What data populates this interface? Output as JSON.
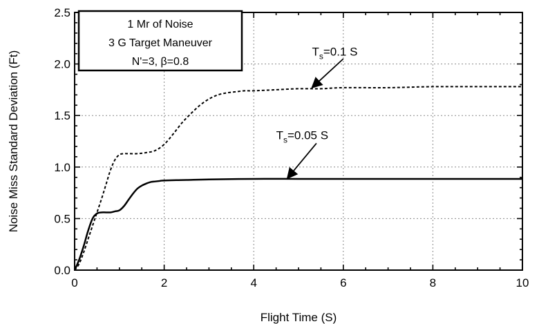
{
  "chart_data": {
    "type": "line",
    "xlabel": "Flight Time (S)",
    "ylabel": "Noise Miss Standard Deviation (Ft)",
    "xlim": [
      0,
      10
    ],
    "ylim": [
      0,
      2.5
    ],
    "xticks": [
      "0",
      "2",
      "4",
      "6",
      "8",
      "10"
    ],
    "yticks": [
      "0.0",
      "0.5",
      "1.0",
      "1.5",
      "2.0",
      "2.5"
    ],
    "grid": true,
    "legend_box": {
      "placement": "top-left",
      "lines": [
        "1 Mr of Noise",
        "3 G Target Maneuver",
        "N'=3, β=0.8"
      ]
    },
    "series": [
      {
        "style": "dashed",
        "x": [
          0,
          0.1,
          0.2,
          0.3,
          0.4,
          0.5,
          0.6,
          0.7,
          0.8,
          0.9,
          1.0,
          1.1,
          1.2,
          1.4,
          1.6,
          1.8,
          2.0,
          2.2,
          2.4,
          2.6,
          2.8,
          3.0,
          3.2,
          3.4,
          3.6,
          3.8,
          4.0,
          4.5,
          5.0,
          5.5,
          6.0,
          7.0,
          8.0,
          9.0,
          10.0
        ],
        "y": [
          0.0,
          0.06,
          0.17,
          0.3,
          0.43,
          0.56,
          0.69,
          0.83,
          0.97,
          1.07,
          1.12,
          1.13,
          1.13,
          1.13,
          1.14,
          1.16,
          1.22,
          1.32,
          1.43,
          1.52,
          1.6,
          1.66,
          1.7,
          1.72,
          1.73,
          1.74,
          1.74,
          1.75,
          1.76,
          1.76,
          1.77,
          1.77,
          1.78,
          1.78,
          1.78
        ]
      },
      {
        "style": "solid",
        "x": [
          0,
          0.1,
          0.2,
          0.3,
          0.4,
          0.5,
          0.6,
          0.7,
          0.8,
          0.9,
          1.0,
          1.1,
          1.2,
          1.3,
          1.4,
          1.5,
          1.6,
          1.7,
          1.8,
          1.9,
          2.0,
          2.5,
          3.0,
          4.0,
          5.0,
          6.0,
          7.0,
          8.0,
          9.0,
          10.0
        ],
        "y": [
          0.0,
          0.1,
          0.23,
          0.38,
          0.5,
          0.55,
          0.56,
          0.56,
          0.56,
          0.57,
          0.58,
          0.62,
          0.68,
          0.74,
          0.79,
          0.82,
          0.84,
          0.855,
          0.86,
          0.865,
          0.87,
          0.875,
          0.88,
          0.885,
          0.885,
          0.885,
          0.885,
          0.885,
          0.885,
          0.885
        ]
      }
    ],
    "annotations": [
      {
        "prefix": "T",
        "sub": "s",
        "suffix": "=0.1  S",
        "text_at": [
          5.3,
          2.08
        ],
        "arrow_from": [
          6.0,
          2.05
        ],
        "arrow_to": [
          5.3,
          1.77
        ]
      },
      {
        "prefix": "T",
        "sub": "s",
        "suffix": "=0.05  S",
        "text_at": [
          4.5,
          1.27
        ],
        "arrow_from": [
          5.4,
          1.23
        ],
        "arrow_to": [
          4.75,
          0.89
        ]
      }
    ]
  }
}
